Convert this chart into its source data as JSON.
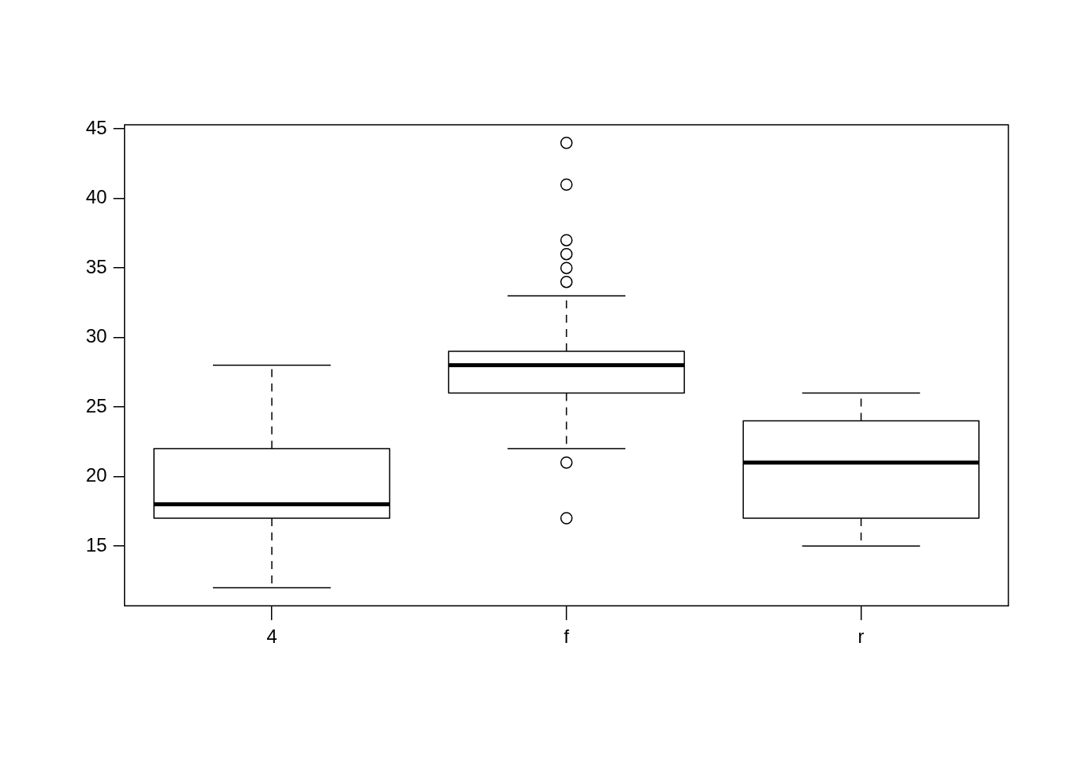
{
  "chart_data": {
    "type": "box",
    "categories": [
      "4",
      "f",
      "r"
    ],
    "boxes": [
      {
        "low": 12,
        "q1": 17,
        "median": 18,
        "q3": 22,
        "high": 28
      },
      {
        "low": 22,
        "q1": 26,
        "median": 28,
        "q3": 29,
        "high": 33,
        "outliers": [
          17,
          21,
          34,
          35,
          36,
          37,
          41,
          44
        ]
      },
      {
        "low": 15,
        "q1": 17,
        "median": 21,
        "q3": 24,
        "high": 26
      }
    ],
    "color": "#000000",
    "ylim": [
      10.7,
      45.3
    ],
    "yticks": [
      15,
      20,
      25,
      30,
      35,
      40,
      45
    ],
    "grid": false,
    "legend": false,
    "marker": "circle"
  }
}
